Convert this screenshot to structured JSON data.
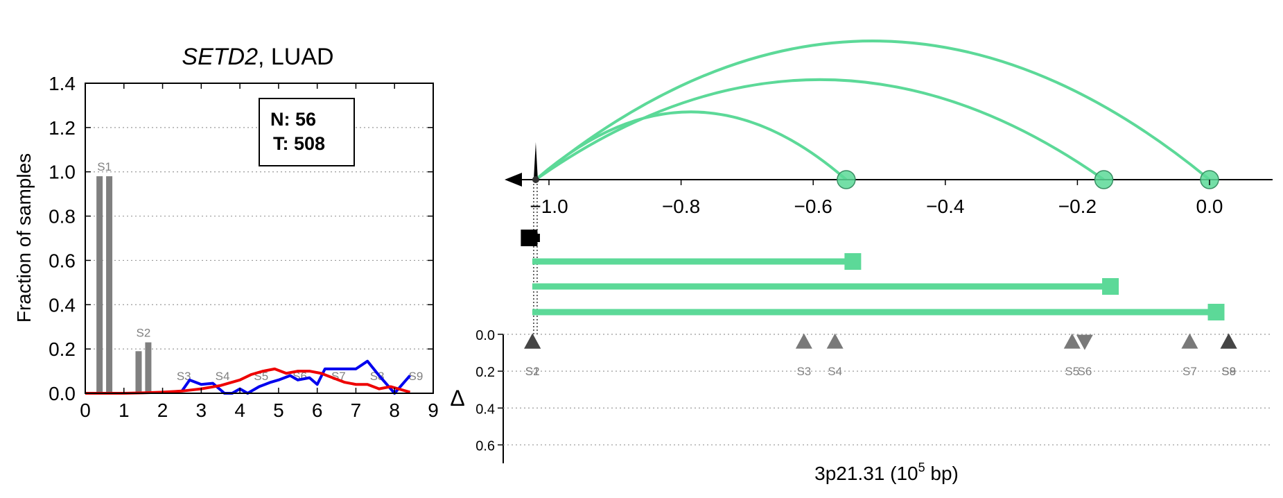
{
  "colors": {
    "bar": "#808080",
    "normal_line": "#0000ee",
    "tumor_line": "#ee0000",
    "arc": "#5cd998",
    "axis": "#000000",
    "grid": "#999999",
    "marker": "#555555",
    "label_gray": "#808080",
    "start_marker": "#000000"
  },
  "chart_data": [
    {
      "type": "bar",
      "title_gene": "SETD2",
      "title_rest": ", LUAD",
      "xlabel": "",
      "ylabel": "Fraction of samples",
      "xlim": [
        0,
        9
      ],
      "ylim": [
        0,
        1.4
      ],
      "xticks": [
        "0",
        "1",
        "2",
        "3",
        "4",
        "5",
        "6",
        "7",
        "8",
        "9"
      ],
      "yticks": [
        "0.0",
        "0.2",
        "0.4",
        "0.6",
        "0.8",
        "1.0",
        "1.2",
        "1.4"
      ],
      "grid": "horizontal dotted",
      "legend": {
        "placement": "top-right",
        "lines": [
          "N: 56",
          "T: 508"
        ]
      },
      "bars": [
        {
          "label": "S1",
          "x": [
            0.37,
            0.62
          ],
          "values": [
            0.98,
            0.98
          ]
        },
        {
          "label": "S2",
          "x": [
            1.38,
            1.63
          ],
          "values": [
            0.19,
            0.23
          ]
        }
      ],
      "site_labels": [
        {
          "label": "S3",
          "x": 2.55,
          "y": 0.06
        },
        {
          "label": "S4",
          "x": 3.55,
          "y": 0.06
        },
        {
          "label": "S5",
          "x": 4.55,
          "y": 0.06
        },
        {
          "label": "S6",
          "x": 5.55,
          "y": 0.06
        },
        {
          "label": "S7",
          "x": 6.55,
          "y": 0.06
        },
        {
          "label": "S8",
          "x": 7.55,
          "y": 0.06
        },
        {
          "label": "S9",
          "x": 8.55,
          "y": 0.06
        }
      ],
      "series": [
        {
          "name": "N",
          "color_key": "normal_line",
          "x": [
            2.5,
            2.7,
            3.0,
            3.3,
            3.6,
            3.8,
            4.0,
            4.2,
            4.5,
            4.8,
            5.0,
            5.3,
            5.5,
            5.8,
            6.0,
            6.2,
            6.5,
            6.8,
            7.0,
            7.3,
            7.6,
            7.8,
            8.0,
            8.2,
            8.4
          ],
          "values": [
            0.01,
            0.06,
            0.04,
            0.045,
            0.0,
            0.0,
            0.02,
            0.0,
            0.03,
            0.05,
            0.06,
            0.08,
            0.06,
            0.07,
            0.04,
            0.11,
            0.11,
            0.11,
            0.11,
            0.145,
            0.08,
            0.04,
            0.0,
            0.04,
            0.08
          ]
        },
        {
          "name": "T",
          "color_key": "tumor_line",
          "x": [
            0.0,
            0.5,
            1.0,
            1.5,
            2.0,
            2.5,
            3.0,
            3.5,
            4.0,
            4.3,
            4.6,
            4.9,
            5.2,
            5.5,
            5.8,
            6.1,
            6.4,
            6.7,
            7.0,
            7.3,
            7.6,
            7.9,
            8.1,
            8.4
          ],
          "values": [
            0.0,
            0.0,
            0.0,
            0.002,
            0.005,
            0.01,
            0.02,
            0.035,
            0.06,
            0.085,
            0.1,
            0.11,
            0.09,
            0.1,
            0.1,
            0.09,
            0.07,
            0.05,
            0.04,
            0.04,
            0.02,
            0.03,
            0.02,
            0.005
          ]
        }
      ]
    },
    {
      "type": "arc-diagram",
      "xlabel_prefix": "3p21.31 (10",
      "xlabel_sup": "5",
      "xlabel_suffix": " bp)",
      "xlim": [
        -1.08,
        0.12
      ],
      "xticks": [
        "−1.0",
        "−0.8",
        "−0.6",
        "−0.4",
        "−0.2",
        "0.0"
      ],
      "xtick_values": [
        -1.0,
        -0.8,
        -0.6,
        -0.4,
        -0.2,
        0.0
      ],
      "anchor_x": -1.02,
      "arcs": [
        {
          "end": -0.55,
          "height": 0.42
        },
        {
          "end": -0.16,
          "height": 0.62
        },
        {
          "end": 0.0,
          "height": 0.86
        }
      ],
      "bars": [
        {
          "end": -1.03,
          "color_key": "start_marker"
        },
        {
          "end": -0.54,
          "color_key": "arc"
        },
        {
          "end": -0.15,
          "color_key": "arc"
        },
        {
          "end": 0.01,
          "color_key": "arc"
        }
      ],
      "delta": {
        "ylabel": "Δ",
        "ylim": [
          0.0,
          0.7
        ],
        "yticks": [
          "0.0",
          "0.2",
          "0.4",
          "0.6"
        ],
        "ytick_values": [
          0.0,
          0.2,
          0.4,
          0.6
        ],
        "grid": "horizontal dotted",
        "sites": [
          {
            "label": "S2",
            "x": -1.025,
            "dir": "up",
            "dark": true
          },
          {
            "label": "S1",
            "x": -1.025,
            "dir": "up",
            "dark": true
          },
          {
            "label": "S3",
            "x": -0.614,
            "dir": "up",
            "dark": false
          },
          {
            "label": "S4",
            "x": -0.567,
            "dir": "up",
            "dark": false
          },
          {
            "label": "S5",
            "x": -0.208,
            "dir": "up",
            "dark": false
          },
          {
            "label": "S6",
            "x": -0.189,
            "dir": "down",
            "dark": false
          },
          {
            "label": "S7",
            "x": -0.03,
            "dir": "up",
            "dark": false
          },
          {
            "label": "S8",
            "x": 0.029,
            "dir": "up",
            "dark": true
          },
          {
            "label": "S9",
            "x": 0.029,
            "dir": "up",
            "dark": true
          }
        ]
      }
    }
  ]
}
